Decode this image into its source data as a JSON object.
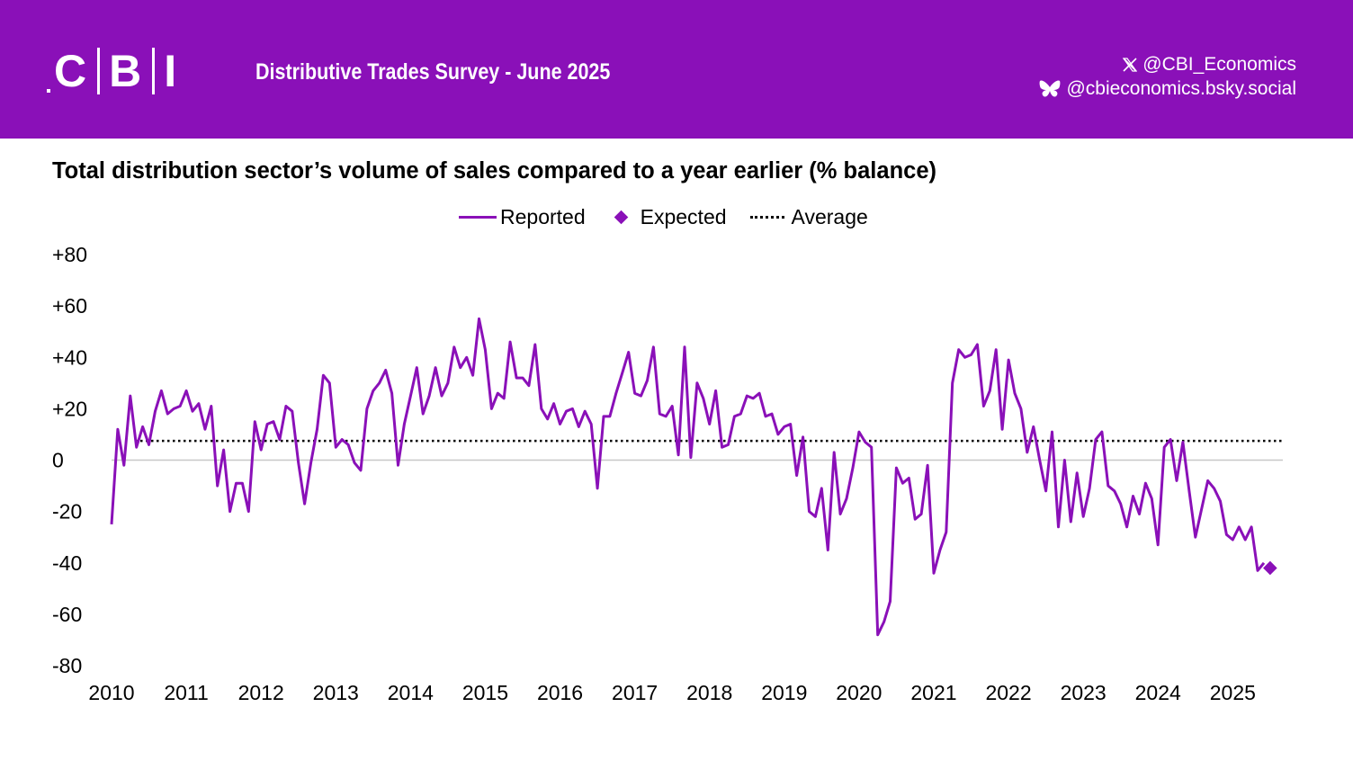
{
  "header": {
    "logo_text": "CBI",
    "survey_title": "Distributive Trades Survey - June 2025",
    "social": [
      {
        "icon": "x-icon",
        "handle": "@CBI_Economics"
      },
      {
        "icon": "butterfly-icon",
        "handle": "@cbieconomics.bsky.social"
      }
    ],
    "bg_color": "#8a10b8"
  },
  "chart_data": {
    "type": "line",
    "title": "Total distribution sector’s volume of sales compared to a year earlier (% balance)",
    "legend": {
      "reported": "Reported",
      "expected": "Expected",
      "average": "Average"
    },
    "legend_position": "top-center",
    "xlabel": "",
    "ylabel": "",
    "ylim": [
      -80,
      80
    ],
    "xlim": [
      2010.0,
      2025.67
    ],
    "y_ticks": [
      "+80",
      "+60",
      "+40",
      "+20",
      "0",
      "-20",
      "-40",
      "-60",
      "-80"
    ],
    "y_tick_values": [
      80,
      60,
      40,
      20,
      0,
      -20,
      -40,
      -60,
      -80
    ],
    "x_ticks": [
      "2010",
      "2011",
      "2012",
      "2013",
      "2014",
      "2015",
      "2016",
      "2017",
      "2018",
      "2019",
      "2020",
      "2021",
      "2022",
      "2023",
      "2024",
      "2025"
    ],
    "x_start_year": 2010,
    "x_step_months": 1,
    "average": 7.5,
    "color": "#8a10b8",
    "reported": [
      -25,
      12,
      -2,
      25,
      5,
      13,
      6,
      19,
      27,
      18,
      20,
      21,
      27,
      19,
      22,
      12,
      21,
      -10,
      4,
      -20,
      -9,
      -9,
      -20,
      15,
      4,
      14,
      15,
      8,
      21,
      19,
      -1,
      -17,
      -1,
      12,
      33,
      30,
      5,
      8,
      6,
      -1,
      -4,
      20,
      27,
      30,
      35,
      26,
      -2,
      14,
      25,
      36,
      18,
      25,
      36,
      25,
      30,
      44,
      36,
      40,
      33,
      55,
      43,
      20,
      26,
      24,
      46,
      32,
      32,
      29,
      45,
      20,
      16,
      22,
      14,
      19,
      20,
      13,
      19,
      14,
      -11,
      17,
      17,
      26,
      34,
      42,
      26,
      25,
      31,
      44,
      18,
      17,
      21,
      2,
      44,
      1,
      30,
      24,
      14,
      27,
      5,
      6,
      17,
      18,
      25,
      24,
      26,
      17,
      18,
      10,
      13,
      14,
      -6,
      9,
      -20,
      -22,
      -11,
      -35,
      3,
      -21,
      -15,
      -3,
      11,
      7,
      5,
      -68,
      -63,
      -55,
      -3,
      -9,
      -7,
      -23,
      -21,
      -2,
      -44,
      -35,
      -28,
      30,
      43,
      40,
      41,
      45,
      21,
      27,
      43,
      12,
      39,
      26,
      20,
      3,
      13,
      0,
      -12,
      11,
      -26,
      0,
      -24,
      -5,
      -22,
      -11,
      8,
      11,
      -10,
      -12,
      -17,
      -26,
      -14,
      -21,
      -9,
      -15,
      -33,
      5,
      8,
      -8,
      7,
      -12,
      -30,
      -19,
      -8,
      -11,
      -16,
      -29,
      -31,
      -26,
      -31,
      -26,
      -43,
      -40
    ],
    "expected": {
      "label": "Jul 2025",
      "value": -42
    }
  }
}
